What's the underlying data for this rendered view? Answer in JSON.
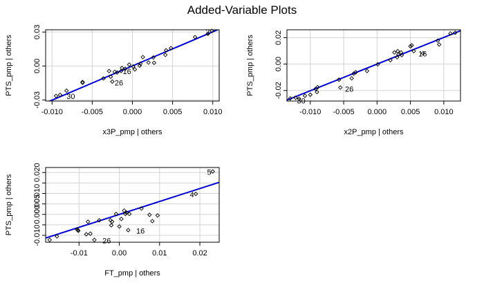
{
  "title": "Added-Variable Plots",
  "colors": {
    "line": "#0000cc",
    "grid": "#d3d3d3",
    "frame": "#000000",
    "point": "#000000"
  },
  "chart_data": [
    {
      "type": "scatter",
      "xlabel": "x3P_pmp | others",
      "ylabel": "PTS_pmp  | others",
      "xlim": [
        -0.0108,
        0.0108
      ],
      "ylim": [
        -0.031,
        0.032
      ],
      "xticks": [
        -0.01,
        -0.005,
        0.0,
        0.005,
        0.01
      ],
      "xtick_labels": [
        "-0.010",
        "-0.005",
        "0.000",
        "0.005",
        "0.010"
      ],
      "yticks": [
        -0.03,
        0.0,
        0.03
      ],
      "ytick_labels": [
        "-0.03",
        "0.00",
        "0.03"
      ],
      "fit_line": {
        "slope": 3.02,
        "intercept": 0.0
      },
      "points": [
        {
          "x": -0.0095,
          "y": -0.0265
        },
        {
          "x": -0.009,
          "y": -0.0255
        },
        {
          "x": -0.0082,
          "y": -0.0218
        },
        {
          "x": -0.0062,
          "y": -0.0142
        },
        {
          "x": -0.0062,
          "y": -0.0148
        },
        {
          "x": -0.0036,
          "y": -0.011
        },
        {
          "x": -0.0029,
          "y": -0.0045
        },
        {
          "x": -0.0027,
          "y": -0.0095
        },
        {
          "x": -0.0025,
          "y": -0.0138
        },
        {
          "x": -0.0022,
          "y": -0.0052
        },
        {
          "x": -0.0019,
          "y": -0.0058
        },
        {
          "x": -0.0014,
          "y": -0.0045
        },
        {
          "x": -0.0013,
          "y": -0.0018
        },
        {
          "x": -0.0009,
          "y": -0.0025
        },
        {
          "x": 0.0001,
          "y": -0.0005
        },
        {
          "x": 0.0003,
          "y": -0.003
        },
        {
          "x": -0.0004,
          "y": 0.0012
        },
        {
          "x": 0.0009,
          "y": 0.0003
        },
        {
          "x": 0.001,
          "y": 0.002
        },
        {
          "x": 0.0013,
          "y": 0.0078
        },
        {
          "x": 0.002,
          "y": 0.003
        },
        {
          "x": 0.0026,
          "y": 0.0075
        },
        {
          "x": 0.0027,
          "y": 0.0028
        },
        {
          "x": 0.0041,
          "y": 0.0098
        },
        {
          "x": 0.0042,
          "y": 0.0138
        },
        {
          "x": 0.0048,
          "y": 0.0158
        },
        {
          "x": 0.0078,
          "y": 0.0255
        },
        {
          "x": 0.0094,
          "y": 0.0285
        },
        {
          "x": 0.0099,
          "y": 0.031
        }
      ],
      "labels": [
        {
          "text": "2",
          "x": 0.0091,
          "y": 0.0301
        },
        {
          "text": "16",
          "x": -0.0012,
          "y": -0.0048
        },
        {
          "text": "26",
          "x": -0.0022,
          "y": -0.0148
        },
        {
          "text": "30",
          "x": -0.0082,
          "y": -0.0268
        }
      ]
    },
    {
      "type": "scatter",
      "xlabel": "x2P_pmp | others",
      "ylabel": "PTS_pmp  | others",
      "xlim": [
        -0.0135,
        0.0125
      ],
      "ylim": [
        -0.028,
        0.026
      ],
      "xticks": [
        -0.01,
        -0.005,
        0.0,
        0.005,
        0.01
      ],
      "xtick_labels": [
        "-0.010",
        "-0.005",
        "0.000",
        "0.005",
        "0.010"
      ],
      "yticks": [
        -0.02,
        0.0,
        0.02
      ],
      "ytick_labels": [
        "-0.02",
        "0.00",
        "0.02"
      ],
      "fit_line": {
        "slope": 2.02,
        "intercept": 0.0
      },
      "points": [
        {
          "x": -0.013,
          "y": -0.026
        },
        {
          "x": -0.0122,
          "y": -0.0255
        },
        {
          "x": -0.0117,
          "y": -0.0262
        },
        {
          "x": -0.0108,
          "y": -0.024
        },
        {
          "x": -0.01,
          "y": -0.0232
        },
        {
          "x": -0.0092,
          "y": -0.0188
        },
        {
          "x": -0.009,
          "y": -0.0212
        },
        {
          "x": -0.0089,
          "y": -0.0175
        },
        {
          "x": -0.0057,
          "y": -0.0118
        },
        {
          "x": -0.0055,
          "y": -0.0178
        },
        {
          "x": -0.0038,
          "y": -0.0108
        },
        {
          "x": -0.0035,
          "y": -0.0072
        },
        {
          "x": -0.0032,
          "y": -0.0062
        },
        {
          "x": -0.0015,
          "y": -0.0052
        },
        {
          "x": 0.0001,
          "y": -0.0002
        },
        {
          "x": 0.002,
          "y": 0.003
        },
        {
          "x": 0.0026,
          "y": 0.0088
        },
        {
          "x": 0.003,
          "y": 0.0052
        },
        {
          "x": 0.0031,
          "y": 0.0098
        },
        {
          "x": 0.0032,
          "y": 0.0072
        },
        {
          "x": 0.0036,
          "y": 0.0088
        },
        {
          "x": 0.0037,
          "y": 0.0068
        },
        {
          "x": 0.005,
          "y": 0.0135
        },
        {
          "x": 0.0052,
          "y": 0.0142
        },
        {
          "x": 0.0055,
          "y": 0.0098
        },
        {
          "x": 0.0069,
          "y": 0.0082
        },
        {
          "x": 0.0091,
          "y": 0.0178
        },
        {
          "x": 0.0093,
          "y": 0.0148
        },
        {
          "x": 0.011,
          "y": 0.0232
        },
        {
          "x": 0.0117,
          "y": 0.0238
        }
      ],
      "labels": [
        {
          "text": "16",
          "x": 0.0062,
          "y": 0.0078
        },
        {
          "text": "26",
          "x": -0.0048,
          "y": -0.0188
        },
        {
          "text": "30",
          "x": -0.012,
          "y": -0.0278
        }
      ]
    },
    {
      "type": "scatter",
      "xlabel": "FT_pmp | others",
      "ylabel": "PTS_pmp  | others",
      "xlim": [
        -0.0183,
        0.0248
      ],
      "ylim": [
        -0.0133,
        0.0224
      ],
      "xticks": [
        -0.01,
        0.0,
        0.01,
        0.02
      ],
      "xtick_labels": [
        "-0.01",
        "0.00",
        "0.01",
        "0.02"
      ],
      "yticks": [
        -0.01,
        -0.005,
        0.0,
        0.005,
        0.01,
        0.015,
        0.02
      ],
      "ytick_labels": [
        "-0.010",
        "",
        "0.000",
        "0.005",
        "0.010",
        "",
        "0.020"
      ],
      "fit_line": {
        "slope": 0.618,
        "intercept": 0.0
      },
      "points": [
        {
          "x": -0.0173,
          "y": -0.0122
        },
        {
          "x": -0.0155,
          "y": -0.0105
        },
        {
          "x": -0.0105,
          "y": -0.0072
        },
        {
          "x": -0.0103,
          "y": -0.0075
        },
        {
          "x": -0.0102,
          "y": -0.0078
        },
        {
          "x": -0.0082,
          "y": -0.0095
        },
        {
          "x": -0.0078,
          "y": -0.0035
        },
        {
          "x": -0.0072,
          "y": -0.0092
        },
        {
          "x": -0.0062,
          "y": -0.0122
        },
        {
          "x": -0.005,
          "y": -0.0028
        },
        {
          "x": -0.0022,
          "y": -0.0028
        },
        {
          "x": -0.002,
          "y": -0.0052
        },
        {
          "x": -0.0018,
          "y": -0.0035
        },
        {
          "x": -0.0008,
          "y": 0.0002
        },
        {
          "x": 0.0,
          "y": -0.0058
        },
        {
          "x": 0.0005,
          "y": -0.0022
        },
        {
          "x": 0.0012,
          "y": 0.0018
        },
        {
          "x": 0.0015,
          "y": 0.0002
        },
        {
          "x": 0.0018,
          "y": 0.0008
        },
        {
          "x": 0.0022,
          "y": -0.0075
        },
        {
          "x": 0.0025,
          "y": 0.0002
        },
        {
          "x": 0.0055,
          "y": 0.0028
        },
        {
          "x": 0.0075,
          "y": -0.0002
        },
        {
          "x": 0.0082,
          "y": -0.0032
        },
        {
          "x": 0.0095,
          "y": -0.0005
        },
        {
          "x": 0.019,
          "y": 0.0098
        },
        {
          "x": 0.0232,
          "y": 0.0205
        }
      ],
      "labels": [
        {
          "text": "4",
          "x": 0.0175,
          "y": 0.0095
        },
        {
          "text": "5",
          "x": 0.0218,
          "y": 0.0202
        },
        {
          "text": "16",
          "x": 0.0042,
          "y": -0.0078
        },
        {
          "text": "26",
          "x": -0.0042,
          "y": -0.0125
        }
      ]
    }
  ]
}
